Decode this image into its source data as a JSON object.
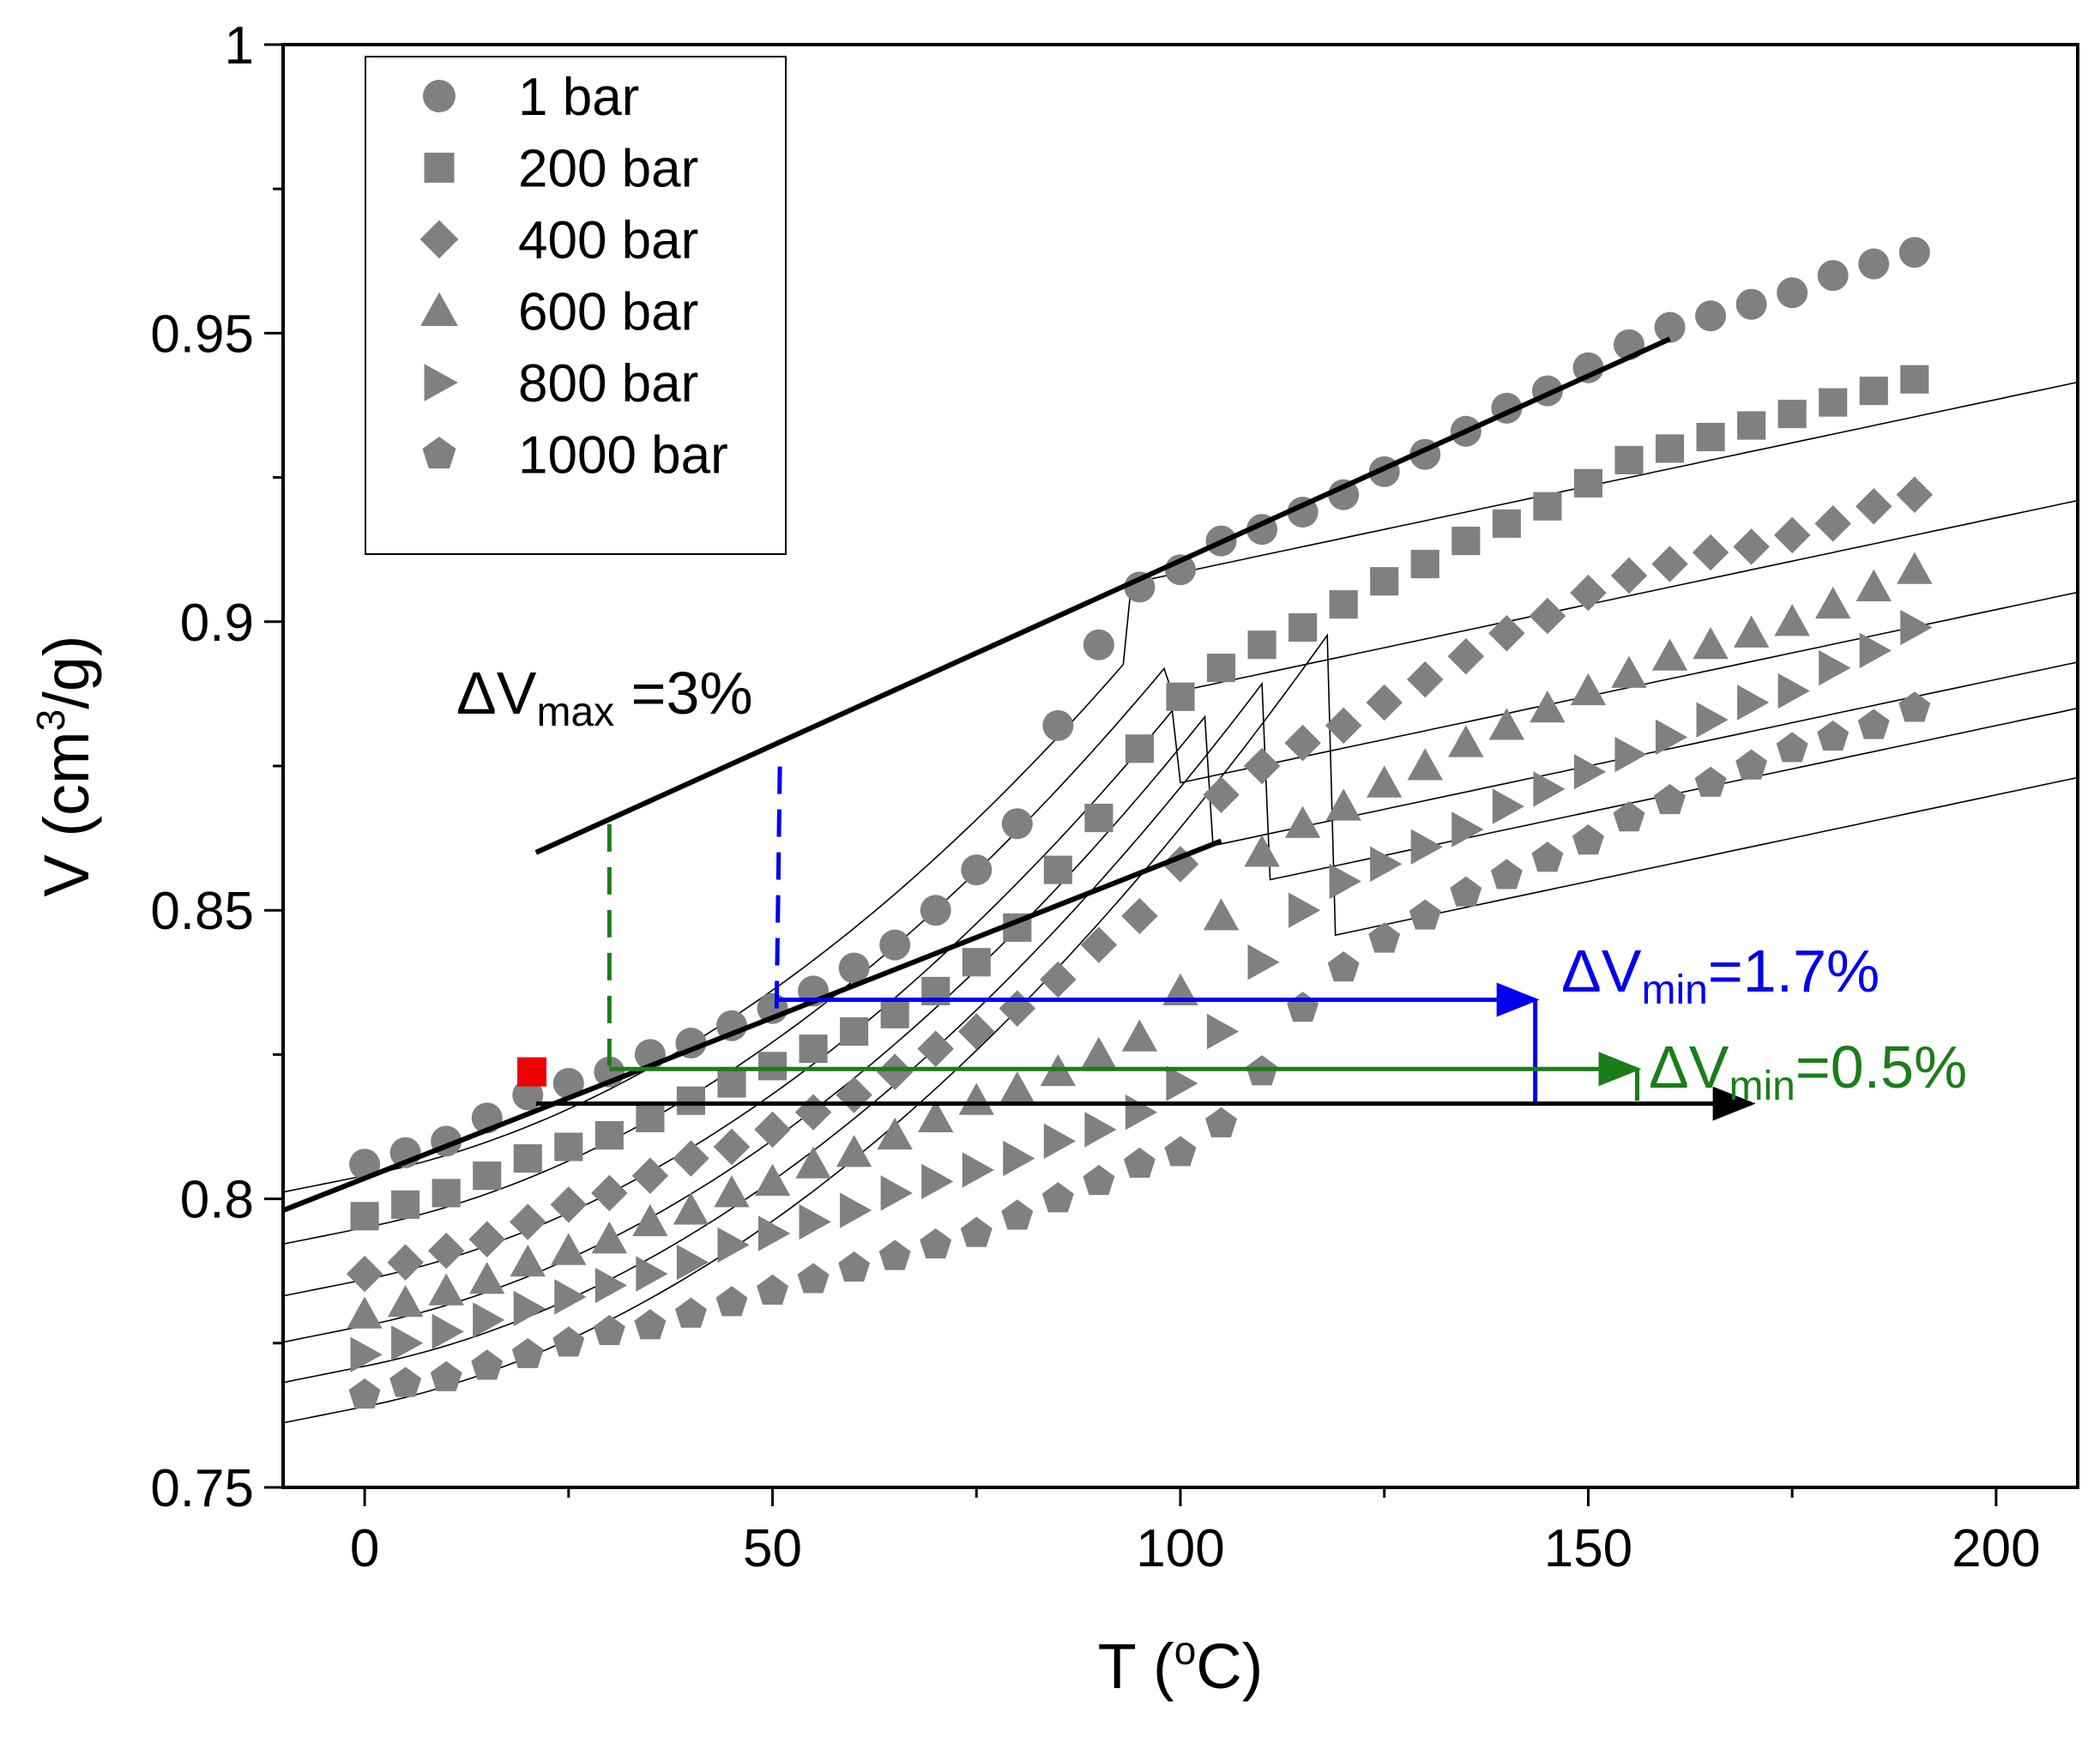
{
  "chart_data": {
    "type": "scatter",
    "title": "",
    "xlabel_main": "T (",
    "xlabel_sup": "o",
    "xlabel_end": "C)",
    "ylabel_main": "V (cm",
    "ylabel_sup": "3",
    "ylabel_end": "/g)",
    "xlim": [
      -10,
      210
    ],
    "ylim": [
      0.75,
      1.0
    ],
    "xticks": [
      0,
      50,
      100,
      150,
      200
    ],
    "xtick_labels": [
      "0",
      "50",
      "100",
      "150",
      "200"
    ],
    "yticks": [
      0.75,
      0.8,
      0.85,
      0.9,
      0.95,
      1.0
    ],
    "ytick_labels": [
      "0.75",
      "0.8",
      "0.85",
      "0.9",
      "0.95",
      "1"
    ],
    "marker_color": "#808080",
    "legend_position": "top-left",
    "x": [
      0,
      5,
      10,
      15,
      20,
      25,
      30,
      35,
      40,
      45,
      50,
      55,
      60,
      65,
      70,
      75,
      80,
      85,
      90,
      95,
      100,
      105,
      110,
      115,
      120,
      125,
      130,
      135,
      140,
      145,
      150,
      155,
      160,
      165,
      170,
      175,
      180,
      185,
      190
    ],
    "series": [
      {
        "name": "1 bar",
        "marker": "circle",
        "values": [
          0.806,
          0.808,
          0.81,
          0.814,
          0.818,
          0.82,
          0.822,
          0.825,
          0.827,
          0.83,
          0.833,
          0.836,
          0.84,
          0.844,
          0.85,
          0.857,
          0.865,
          0.882,
          0.896,
          0.906,
          0.909,
          0.914,
          0.916,
          0.919,
          0.922,
          0.926,
          0.929,
          0.933,
          0.937,
          0.94,
          0.944,
          0.948,
          0.951,
          0.953,
          0.955,
          0.957,
          0.96,
          0.962,
          0.964
        ],
        "fit": {
          "break": 93,
          "low": {
            "a": 0.804,
            "b": 0.000283,
            "c": 7.2e-06
          },
          "high": {
            "a": 0.8785,
            "b": 0.0003
          }
        }
      },
      {
        "name": "200 bar",
        "marker": "square",
        "values": [
          0.797,
          0.799,
          0.801,
          0.804,
          0.807,
          0.809,
          0.811,
          0.814,
          0.817,
          0.82,
          0.823,
          0.826,
          0.829,
          0.832,
          0.836,
          0.841,
          0.847,
          0.857,
          0.866,
          0.878,
          0.887,
          0.892,
          0.896,
          0.899,
          0.903,
          0.907,
          0.91,
          0.914,
          0.917,
          0.92,
          0.924,
          0.928,
          0.93,
          0.932,
          0.934,
          0.936,
          0.938,
          0.94,
          0.942
        ],
        "fit": {
          "break": 98,
          "low": {
            "a": 0.795,
            "b": 0.000283,
            "c": 7.2e-06
          },
          "high": {
            "a": 0.858,
            "b": 0.0003
          }
        }
      },
      {
        "name": "400 bar",
        "marker": "diamond",
        "values": [
          0.787,
          0.789,
          0.791,
          0.793,
          0.796,
          0.799,
          0.801,
          0.804,
          0.807,
          0.809,
          0.812,
          0.815,
          0.818,
          0.822,
          0.826,
          0.829,
          0.833,
          0.838,
          0.844,
          0.849,
          0.858,
          0.87,
          0.875,
          0.879,
          0.882,
          0.886,
          0.89,
          0.894,
          0.898,
          0.901,
          0.905,
          0.908,
          0.91,
          0.912,
          0.913,
          0.915,
          0.917,
          0.92,
          0.922
        ],
        "fit": {
          "break": 99,
          "low": {
            "a": 0.786,
            "b": 0.000283,
            "c": 7.2e-06
          },
          "high": {
            "a": 0.8421,
            "b": 0.0003
          }
        }
      },
      {
        "name": "600 bar",
        "marker": "triangle",
        "values": [
          0.78,
          0.782,
          0.784,
          0.786,
          0.789,
          0.791,
          0.793,
          0.796,
          0.798,
          0.801,
          0.803,
          0.806,
          0.808,
          0.811,
          0.814,
          0.817,
          0.819,
          0.822,
          0.825,
          0.828,
          0.836,
          0.849,
          0.86,
          0.865,
          0.868,
          0.872,
          0.875,
          0.879,
          0.882,
          0.885,
          0.888,
          0.891,
          0.894,
          0.896,
          0.898,
          0.9,
          0.903,
          0.906,
          0.909
        ],
        "fit": {
          "break": 103,
          "low": {
            "a": 0.778,
            "b": 0.000283,
            "c": 7.2e-06
          },
          "high": {
            "a": 0.83,
            "b": 0.0003
          }
        }
      },
      {
        "name": "800 bar",
        "marker": "right-triangle",
        "values": [
          0.773,
          0.775,
          0.777,
          0.779,
          0.781,
          0.783,
          0.785,
          0.787,
          0.789,
          0.792,
          0.794,
          0.796,
          0.798,
          0.801,
          0.803,
          0.805,
          0.807,
          0.81,
          0.812,
          0.815,
          0.82,
          0.829,
          0.841,
          0.85,
          0.855,
          0.858,
          0.861,
          0.864,
          0.868,
          0.871,
          0.874,
          0.877,
          0.88,
          0.883,
          0.886,
          0.888,
          0.892,
          0.895,
          0.899
        ],
        "fit": {
          "break": 110,
          "low": {
            "a": 0.771,
            "b": 0.000283,
            "c": 7.2e-06
          },
          "high": {
            "a": 0.822,
            "b": 0.0003
          }
        }
      },
      {
        "name": "1000 bar",
        "marker": "pentagon",
        "values": [
          0.766,
          0.768,
          0.769,
          0.771,
          0.773,
          0.775,
          0.777,
          0.778,
          0.78,
          0.782,
          0.784,
          0.786,
          0.788,
          0.79,
          0.792,
          0.794,
          0.797,
          0.8,
          0.803,
          0.806,
          0.808,
          0.813,
          0.822,
          0.833,
          0.84,
          0.845,
          0.849,
          0.853,
          0.856,
          0.859,
          0.862,
          0.866,
          0.869,
          0.872,
          0.875,
          0.878,
          0.88,
          0.882,
          0.885
        ],
        "fit": {
          "break": 118,
          "low": {
            "a": 0.764,
            "b": 0.000283,
            "c": 7.2e-06
          },
          "high": {
            "a": 0.81,
            "b": 0.0003
          }
        }
      }
    ],
    "annotations": {
      "red_square": {
        "x": 20.5,
        "y": 0.822,
        "color": "#ee0000"
      },
      "tangent_high": {
        "x1": 21,
        "y1": 0.86,
        "x2": 160,
        "y2": 0.949,
        "color": "#000000"
      },
      "tangent_low": {
        "x1": -10,
        "y1": 0.798,
        "x2": 105,
        "y2": 0.862,
        "color": "#000000"
      },
      "green_dashed": {
        "x": 30,
        "y_from": 0.823,
        "y_to": 0.866,
        "color": "#1a7d1a"
      },
      "blue_dashed": {
        "x": 50.5,
        "y_from": 0.833,
        "y_to": 0.877,
        "color": "#0000ee"
      },
      "blue_arrow": {
        "x1": 50.5,
        "x2": 143.5,
        "y": 0.8345,
        "color": "#0000ee"
      },
      "blue_tick": {
        "x": 143.5,
        "y_from": 0.8345,
        "y_to": 0.8165
      },
      "green_arrow": {
        "x1": 30,
        "x2": 156,
        "y": 0.8225,
        "color": "#1a7d1a"
      },
      "green_tick": {
        "x": 156,
        "y_from": 0.8225,
        "y_to": 0.817
      },
      "black_arrow": {
        "x1": 21,
        "x2": 170,
        "y": 0.8165,
        "color": "#000000"
      },
      "label_max": {
        "delta": "Δ",
        "main": "V",
        "sub": "max",
        "tail": " =3%",
        "color": "#000000"
      },
      "label_min_blue": {
        "delta": "Δ",
        "main": "V",
        "sub": "min",
        "tail": "=1.7%",
        "color": "#0000ee"
      },
      "label_min_green": {
        "delta": "Δ",
        "main": "V",
        "sub": "min",
        "tail": "=0.5%",
        "color": "#1a7d1a"
      }
    }
  }
}
